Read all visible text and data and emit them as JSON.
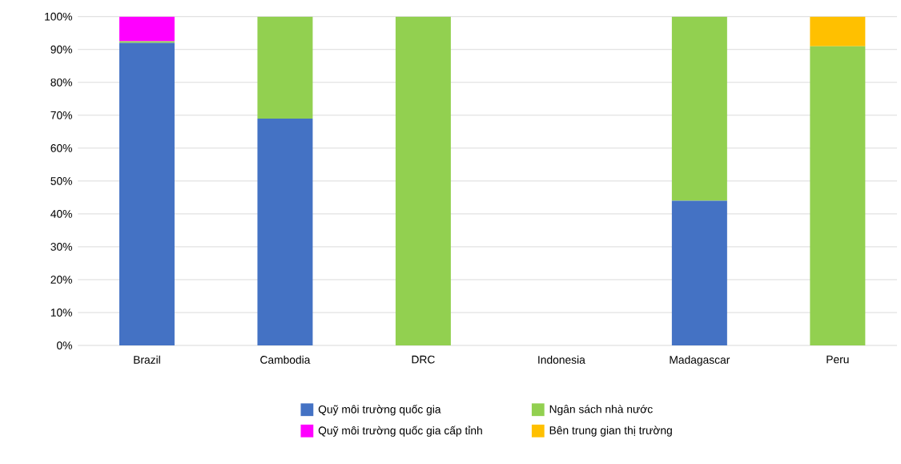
{
  "chart_data": {
    "type": "bar",
    "stacked": true,
    "categories": [
      "Brazil",
      "Cambodia",
      "DRC",
      "Indonesia",
      "Madagascar",
      "Peru"
    ],
    "series": [
      {
        "name": "Quỹ môi trường quốc gia",
        "color": "#4472c4",
        "values": [
          92,
          69,
          null,
          null,
          44,
          null
        ]
      },
      {
        "name": "Ngân sách nhà nước",
        "color": "#92d050",
        "values": [
          0.5,
          31,
          100,
          null,
          56,
          91
        ]
      },
      {
        "name": "Quỹ môi trường quốc gia cấp tỉnh",
        "color": "#ff00ff",
        "values": [
          7.5,
          null,
          null,
          null,
          null,
          null
        ]
      },
      {
        "name": "Bên trung gian thị trường",
        "color": "#ffc000",
        "values": [
          null,
          null,
          null,
          null,
          null,
          9
        ]
      }
    ],
    "ylim": [
      0,
      100
    ],
    "yticks": [
      {
        "value": 0,
        "label": "0%"
      },
      {
        "value": 10,
        "label": "10%"
      },
      {
        "value": 20,
        "label": "20%"
      },
      {
        "value": 30,
        "label": "30%"
      },
      {
        "value": 40,
        "label": "40%"
      },
      {
        "value": 50,
        "label": "50%"
      },
      {
        "value": 60,
        "label": "60%"
      },
      {
        "value": 70,
        "label": "70%"
      },
      {
        "value": 80,
        "label": "80%"
      },
      {
        "value": 90,
        "label": "90%"
      },
      {
        "value": 100,
        "label": "100%"
      }
    ],
    "grid": "y",
    "legend": "bottom"
  }
}
